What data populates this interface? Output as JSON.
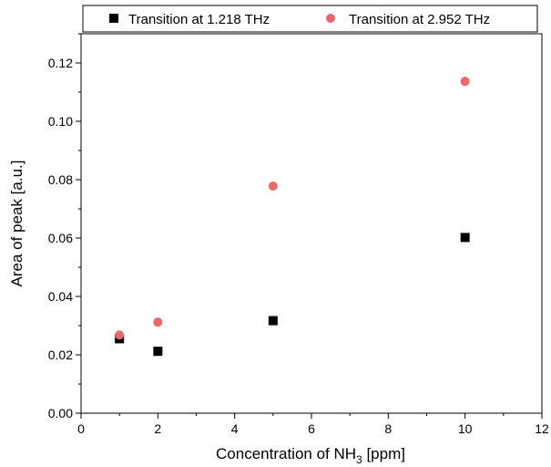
{
  "chart_data": {
    "type": "scatter",
    "title": "",
    "xlabel": "Concentration of NH",
    "xlabel_sub": "3",
    "xlabel_tail": " [ppm]",
    "ylabel": "Area of peak [a.u.]",
    "xlim": [
      0,
      12
    ],
    "ylim": [
      0,
      0.13
    ],
    "x_ticks": [
      0,
      2,
      4,
      6,
      8,
      10,
      12
    ],
    "x_tick_labels": [
      "0",
      "2",
      "4",
      "6",
      "8",
      "10",
      "12"
    ],
    "y_ticks": [
      0.0,
      0.02,
      0.04,
      0.06,
      0.08,
      0.1,
      0.12
    ],
    "y_tick_labels": [
      "0.00",
      "0.02",
      "0.04",
      "0.06",
      "0.08",
      "0.10",
      "0.12"
    ],
    "grid": false,
    "legend_position": "top",
    "series": [
      {
        "name": "Transition at 1.218 THz",
        "marker": "square",
        "color": "#000000",
        "x": [
          1,
          2,
          5,
          10
        ],
        "y": [
          0.0255,
          0.0212,
          0.0317,
          0.0602
        ]
      },
      {
        "name": "Transition at 2.952 THz",
        "marker": "circle",
        "color": "#e8696b",
        "x": [
          1,
          2,
          5,
          10
        ],
        "y": [
          0.0268,
          0.0312,
          0.0778,
          0.1137
        ]
      }
    ]
  }
}
